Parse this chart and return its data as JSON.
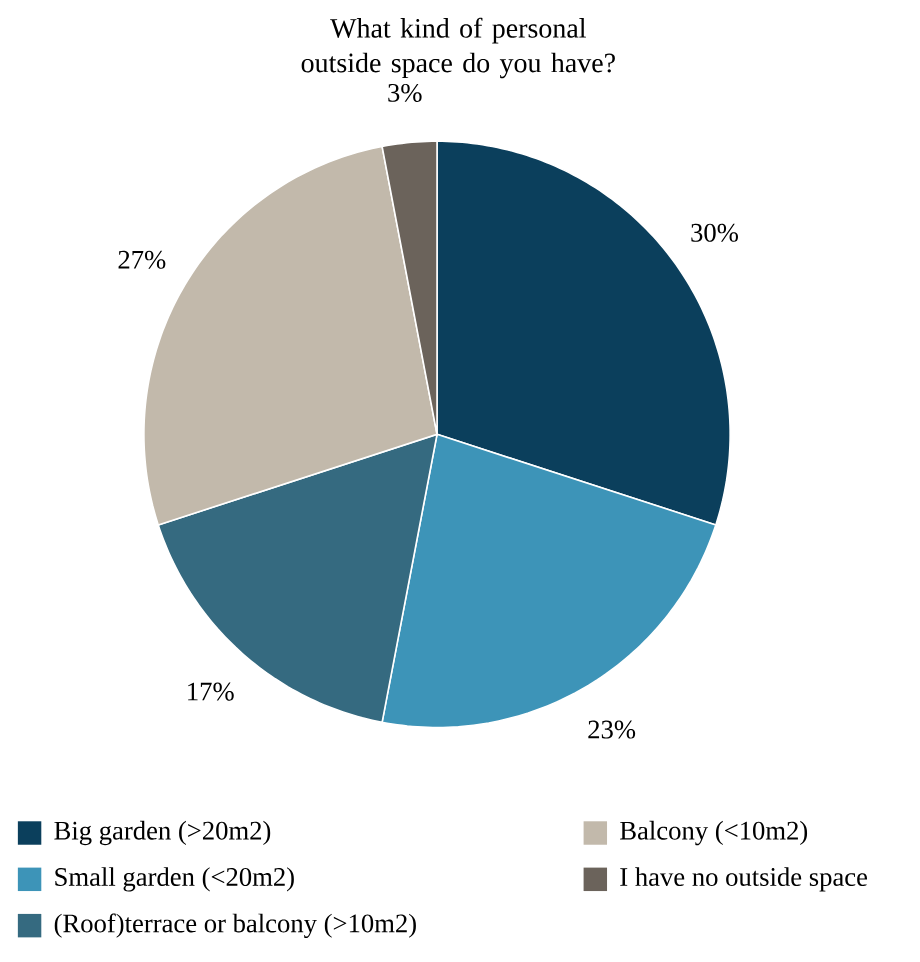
{
  "chart_data": {
    "type": "pie",
    "title": "What kind of personal outside space do you have?",
    "categories": [
      "Big garden (>20m2)",
      "Small garden (<20m2)",
      "(Roof)terrace or balcony (>10m2)",
      "Balcony (<10m2)",
      "I have no outside space"
    ],
    "values": [
      30,
      23,
      17,
      27,
      3
    ],
    "value_labels": [
      "30%",
      "23%",
      "17%",
      "27%",
      "3%"
    ],
    "colors": [
      "#0b3f5c",
      "#3d94b8",
      "#356a80",
      "#c2b9ab",
      "#6b635b"
    ],
    "legend": "bottom"
  }
}
